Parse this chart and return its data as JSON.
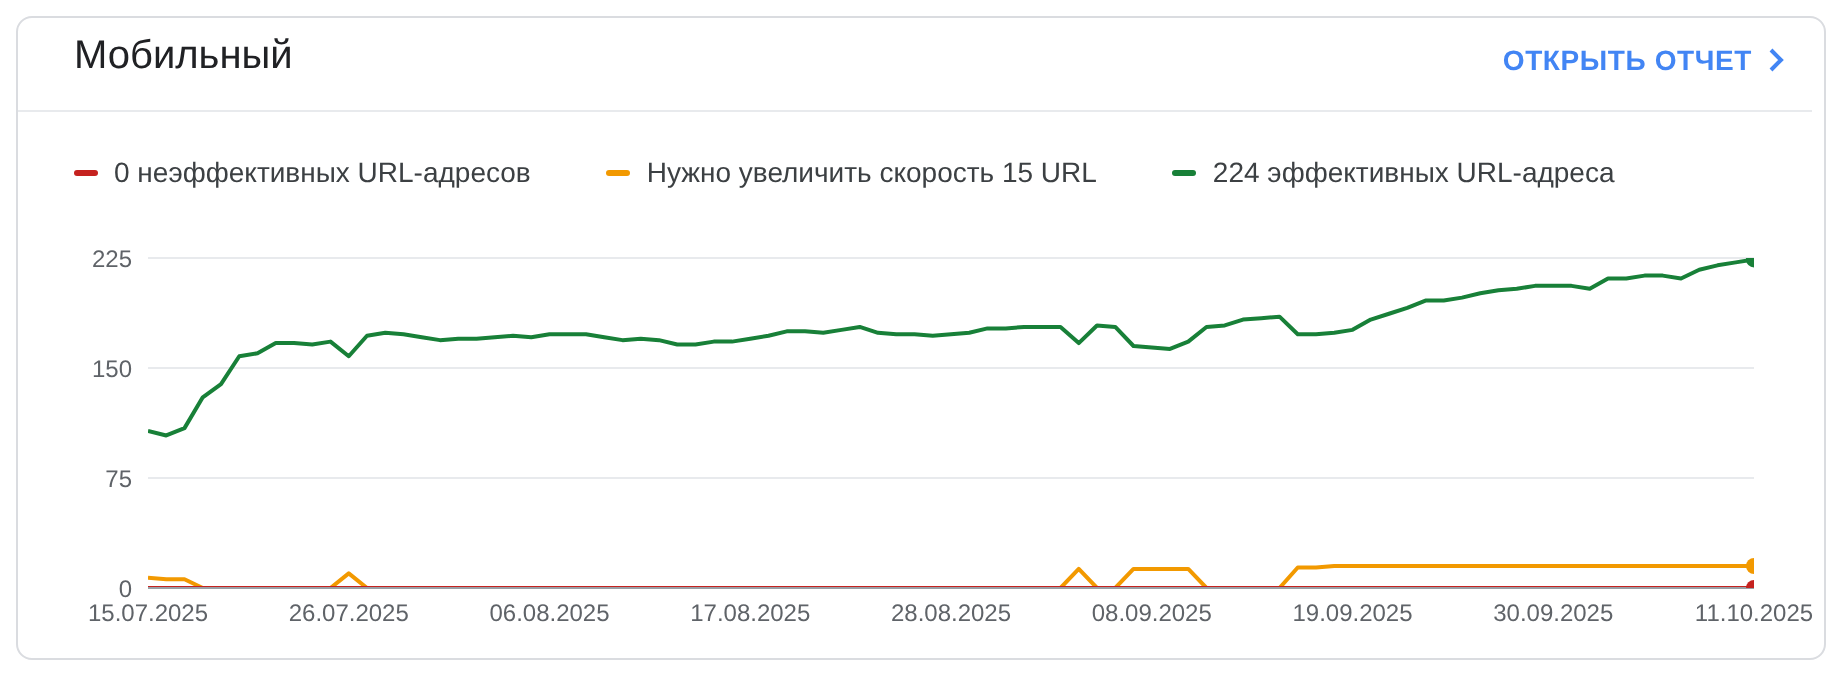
{
  "chart_data": {
    "type": "line",
    "title": "Мобильный",
    "annotations": [
      "ОТКРЫТЬ ОТЧЕТ"
    ],
    "x": [
      "2025-07-15",
      "2025-07-16",
      "2025-07-17",
      "2025-07-18",
      "2025-07-19",
      "2025-07-20",
      "2025-07-21",
      "2025-07-22",
      "2025-07-23",
      "2025-07-24",
      "2025-07-25",
      "2025-07-26",
      "2025-07-27",
      "2025-07-28",
      "2025-07-29",
      "2025-07-30",
      "2025-07-31",
      "2025-08-01",
      "2025-08-02",
      "2025-08-03",
      "2025-08-04",
      "2025-08-05",
      "2025-08-06",
      "2025-08-07",
      "2025-08-08",
      "2025-08-09",
      "2025-08-10",
      "2025-08-11",
      "2025-08-12",
      "2025-08-13",
      "2025-08-14",
      "2025-08-15",
      "2025-08-16",
      "2025-08-17",
      "2025-08-18",
      "2025-08-19",
      "2025-08-20",
      "2025-08-21",
      "2025-08-22",
      "2025-08-23",
      "2025-08-24",
      "2025-08-25",
      "2025-08-26",
      "2025-08-27",
      "2025-08-28",
      "2025-08-29",
      "2025-08-30",
      "2025-08-31",
      "2025-09-01",
      "2025-09-02",
      "2025-09-03",
      "2025-09-04",
      "2025-09-05",
      "2025-09-06",
      "2025-09-07",
      "2025-09-08",
      "2025-09-09",
      "2025-09-10",
      "2025-09-11",
      "2025-09-12",
      "2025-09-13",
      "2025-09-14",
      "2025-09-15",
      "2025-09-16",
      "2025-09-17",
      "2025-09-18",
      "2025-09-19",
      "2025-09-20",
      "2025-09-21",
      "2025-09-22",
      "2025-09-23",
      "2025-09-24",
      "2025-09-25",
      "2025-09-26",
      "2025-09-27",
      "2025-09-28",
      "2025-09-29",
      "2025-09-30",
      "2025-10-01",
      "2025-10-02",
      "2025-10-03",
      "2025-10-04",
      "2025-10-05",
      "2025-10-06",
      "2025-10-07",
      "2025-10-08",
      "2025-10-09",
      "2025-10-10",
      "2025-10-11"
    ],
    "series": [
      {
        "name": "0 неэффективных URL-адресов",
        "color": "#c5221f",
        "values": [
          0,
          0,
          0,
          0,
          0,
          0,
          0,
          0,
          0,
          0,
          0,
          0,
          0,
          0,
          0,
          0,
          0,
          0,
          0,
          0,
          0,
          0,
          0,
          0,
          0,
          0,
          0,
          0,
          0,
          0,
          0,
          0,
          0,
          0,
          0,
          0,
          0,
          0,
          0,
          0,
          0,
          0,
          0,
          0,
          0,
          0,
          0,
          0,
          0,
          0,
          0,
          0,
          0,
          0,
          0,
          0,
          0,
          0,
          0,
          0,
          0,
          0,
          0,
          0,
          0,
          0,
          0,
          0,
          0,
          0,
          0,
          0,
          0,
          0,
          0,
          0,
          0,
          0,
          0,
          0,
          0,
          0,
          0,
          0,
          0,
          0,
          0,
          0,
          0
        ]
      },
      {
        "name": "Нужно увеличить скорость 15 URL",
        "color": "#f29900",
        "values": [
          7,
          6,
          6,
          0,
          null,
          null,
          null,
          null,
          null,
          null,
          0,
          10,
          0,
          null,
          null,
          null,
          null,
          null,
          null,
          null,
          null,
          null,
          null,
          null,
          null,
          null,
          null,
          null,
          null,
          null,
          null,
          null,
          null,
          null,
          null,
          null,
          null,
          null,
          null,
          null,
          null,
          null,
          null,
          null,
          null,
          null,
          null,
          null,
          null,
          null,
          0,
          13,
          0,
          0,
          13,
          13,
          13,
          13,
          0,
          null,
          null,
          null,
          0,
          14,
          14,
          15,
          15,
          15,
          15,
          15,
          15,
          15,
          15,
          15,
          15,
          15,
          15,
          15,
          15,
          15,
          15,
          15,
          15,
          15,
          15,
          15,
          15,
          15,
          15
        ]
      },
      {
        "name": "224 эффективных URL-адреса",
        "color": "#188038",
        "values": [
          107,
          104,
          109,
          130,
          139,
          158,
          160,
          167,
          167,
          166,
          168,
          158,
          172,
          174,
          173,
          171,
          169,
          170,
          170,
          171,
          172,
          171,
          173,
          173,
          173,
          171,
          169,
          170,
          169,
          166,
          166,
          168,
          168,
          170,
          172,
          175,
          175,
          174,
          176,
          178,
          174,
          173,
          173,
          172,
          173,
          174,
          177,
          177,
          178,
          178,
          178,
          167,
          179,
          178,
          165,
          164,
          163,
          168,
          178,
          179,
          183,
          184,
          185,
          173,
          173,
          174,
          176,
          183,
          187,
          191,
          196,
          196,
          198,
          201,
          203,
          204,
          206,
          206,
          206,
          204,
          211,
          211,
          213,
          213,
          211,
          217,
          220,
          222,
          224
        ]
      }
    ],
    "xlim": [
      "2025-07-15",
      "2025-10-11"
    ],
    "xticks": [
      {
        "value": "2025-07-15",
        "label": "15.07.2025"
      },
      {
        "value": "2025-07-26",
        "label": "26.07.2025"
      },
      {
        "value": "2025-08-06",
        "label": "06.08.2025"
      },
      {
        "value": "2025-08-17",
        "label": "17.08.2025"
      },
      {
        "value": "2025-08-28",
        "label": "28.08.2025"
      },
      {
        "value": "2025-09-08",
        "label": "08.09.2025"
      },
      {
        "value": "2025-09-19",
        "label": "19.09.2025"
      },
      {
        "value": "2025-09-30",
        "label": "30.09.2025"
      },
      {
        "value": "2025-10-11",
        "label": "11.10.2025"
      }
    ],
    "ylim": [
      0,
      225
    ],
    "yticks": [
      0,
      75,
      150,
      225
    ],
    "grid": "y",
    "legend": "top left",
    "line_style": "solid"
  }
}
